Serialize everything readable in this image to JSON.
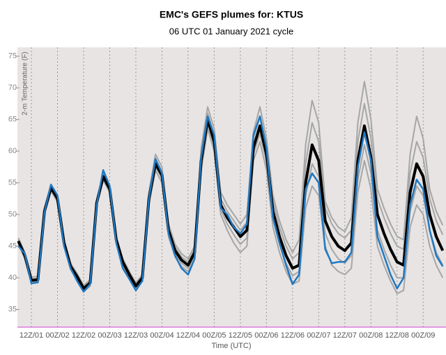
{
  "chart_data": {
    "type": "line",
    "title": "EMC's GEFS plumes for: KTUS",
    "subtitle": "06 UTC 01 January 2021 cycle",
    "x_label": "Time (UTC)",
    "y_label": "2-m Temperature (F)",
    "categories": [
      null,
      null,
      "12Z/01",
      null,
      null,
      null,
      "00Z/02",
      null,
      null,
      null,
      "12Z/02",
      null,
      null,
      null,
      "00Z/03",
      null,
      null,
      null,
      "12Z/03",
      null,
      null,
      null,
      "00Z/04",
      null,
      null,
      null,
      "12Z/04",
      null,
      null,
      null,
      "00Z/05",
      null,
      null,
      null,
      "12Z/05",
      null,
      null,
      null,
      "00Z/06",
      null,
      null,
      null,
      "12Z/06",
      null,
      null,
      null,
      "00Z/07",
      null,
      null,
      null,
      "12Z/07",
      null,
      null,
      null,
      "00Z/08",
      null,
      null,
      null,
      "12Z/08",
      null,
      null,
      null,
      "00Z/09",
      null,
      null,
      null
    ],
    "ylim": [
      32.2,
      76.4
    ],
    "yticks": [
      35,
      40,
      45,
      50,
      55,
      60,
      65,
      70,
      75
    ],
    "grid": true,
    "series": [
      {
        "color": "#a6a6a6",
        "values": [
          46.3,
          44.0,
          40.1,
          40.2,
          51.0,
          54.8,
          53.0,
          46.0,
          42.3,
          40.7,
          38.8,
          39.7,
          52.3,
          56.6,
          54.5,
          46.5,
          43.0,
          41.0,
          39.2,
          40.5,
          53.5,
          59.5,
          57.5,
          48.5,
          45.3,
          43.8,
          43.0,
          45.0,
          60.5,
          67.0,
          63.5,
          53.5,
          51.5,
          50.0,
          48.5,
          50.0,
          63.0,
          67.0,
          62.0,
          53.0,
          49.0,
          46.0,
          44.0,
          46.0,
          61.0,
          68.0,
          64.5,
          52.0,
          49.5,
          48.0,
          47.3,
          49.5,
          64.5,
          71.0,
          65.0,
          54.0,
          51.0,
          48.5,
          46.5,
          46.0,
          59.5,
          65.5,
          62.0,
          54.0,
          50.5,
          48.3
        ]
      },
      {
        "color": "#a6a6a6",
        "values": [
          45.3,
          43.0,
          39.1,
          39.2,
          50.0,
          53.7,
          52.0,
          45.0,
          41.3,
          39.7,
          37.8,
          38.7,
          51.3,
          55.4,
          53.5,
          45.5,
          42.0,
          40.0,
          38.2,
          39.5,
          51.5,
          57.0,
          55.0,
          46.5,
          43.3,
          41.8,
          41.0,
          43.0,
          57.0,
          63.5,
          60.0,
          50.0,
          47.5,
          45.5,
          44.0,
          45.0,
          58.5,
          61.5,
          57.0,
          48.0,
          44.0,
          41.0,
          39.0,
          39.5,
          51.0,
          54.5,
          53.0,
          45.0,
          42.0,
          41.0,
          40.5,
          41.5,
          53.5,
          58.5,
          54.0,
          45.0,
          42.0,
          39.5,
          37.5,
          38.0,
          48.0,
          51.5,
          50.0,
          45.0,
          42.0,
          40.0
        ]
      },
      {
        "color": "#a6a6a6",
        "values": [
          46.0,
          43.7,
          39.8,
          39.9,
          50.7,
          54.4,
          52.7,
          45.7,
          42.0,
          40.4,
          38.5,
          39.4,
          52.0,
          56.3,
          54.2,
          46.2,
          42.7,
          40.7,
          38.9,
          40.2,
          53.0,
          58.8,
          56.8,
          48.0,
          44.8,
          43.3,
          42.5,
          44.5,
          59.5,
          66.0,
          62.5,
          52.5,
          50.5,
          49.0,
          47.5,
          48.8,
          62.0,
          65.5,
          61.0,
          52.0,
          48.0,
          45.0,
          43.0,
          44.0,
          58.0,
          64.5,
          61.5,
          51.0,
          48.5,
          47.0,
          46.3,
          47.5,
          61.5,
          67.5,
          62.0,
          52.5,
          49.5,
          47.0,
          45.0,
          44.5,
          56.5,
          61.5,
          59.0,
          52.5,
          49.0,
          46.8
        ]
      },
      {
        "color": "#a6a6a6",
        "values": [
          45.5,
          43.3,
          39.4,
          39.5,
          50.3,
          54.0,
          52.3,
          45.3,
          41.6,
          40.0,
          38.1,
          39.0,
          51.6,
          55.7,
          53.8,
          45.8,
          42.3,
          40.3,
          38.5,
          39.8,
          52.0,
          57.5,
          55.7,
          47.0,
          43.8,
          42.3,
          41.5,
          43.5,
          57.8,
          64.0,
          60.8,
          50.8,
          48.5,
          46.8,
          45.3,
          46.3,
          59.5,
          62.8,
          58.3,
          49.3,
          45.3,
          42.3,
          40.3,
          41.0,
          53.0,
          58.0,
          56.0,
          47.0,
          44.5,
          43.0,
          42.3,
          43.5,
          55.5,
          61.0,
          56.5,
          47.5,
          44.5,
          42.0,
          40.0,
          40.0,
          50.5,
          54.5,
          53.0,
          47.5,
          44.0,
          42.0
        ]
      },
      {
        "color": "#000000",
        "values": [
          45.8,
          43.5,
          39.6,
          39.7,
          50.5,
          54.2,
          52.5,
          45.5,
          41.8,
          40.2,
          38.3,
          39.2,
          51.8,
          56.0,
          54.0,
          46.0,
          42.5,
          40.5,
          38.7,
          40.0,
          52.5,
          58.0,
          56.2,
          47.5,
          44.3,
          42.8,
          42.0,
          44.0,
          58.5,
          65.0,
          61.5,
          51.5,
          49.5,
          48.0,
          46.5,
          47.5,
          60.5,
          64.0,
          59.5,
          50.5,
          46.5,
          43.5,
          41.5,
          42.0,
          55.0,
          61.0,
          58.5,
          49.0,
          46.5,
          45.0,
          44.3,
          45.5,
          58.5,
          64.0,
          59.0,
          50.0,
          47.0,
          44.5,
          42.5,
          42.0,
          53.5,
          58.0,
          56.0,
          50.0,
          46.5,
          44.3
        ]
      },
      {
        "color": "#1f78c1",
        "values": [
          45.0,
          43.8,
          39.1,
          39.3,
          50.3,
          54.7,
          53.0,
          45.0,
          41.5,
          39.5,
          37.8,
          39.0,
          51.5,
          57.0,
          54.5,
          45.5,
          41.5,
          39.8,
          38.0,
          39.5,
          52.5,
          58.8,
          56.5,
          47.0,
          43.5,
          41.5,
          40.5,
          43.0,
          59.0,
          65.5,
          62.5,
          51.0,
          50.0,
          48.0,
          47.0,
          48.5,
          62.5,
          65.5,
          60.5,
          49.5,
          45.5,
          42.0,
          39.0,
          40.5,
          54.0,
          56.5,
          55.0,
          44.5,
          42.3,
          42.5,
          42.5,
          44.0,
          57.5,
          63.0,
          58.5,
          46.5,
          43.5,
          40.5,
          38.3,
          40.0,
          51.5,
          55.5,
          54.0,
          47.5,
          43.5,
          41.8
        ]
      }
    ]
  }
}
